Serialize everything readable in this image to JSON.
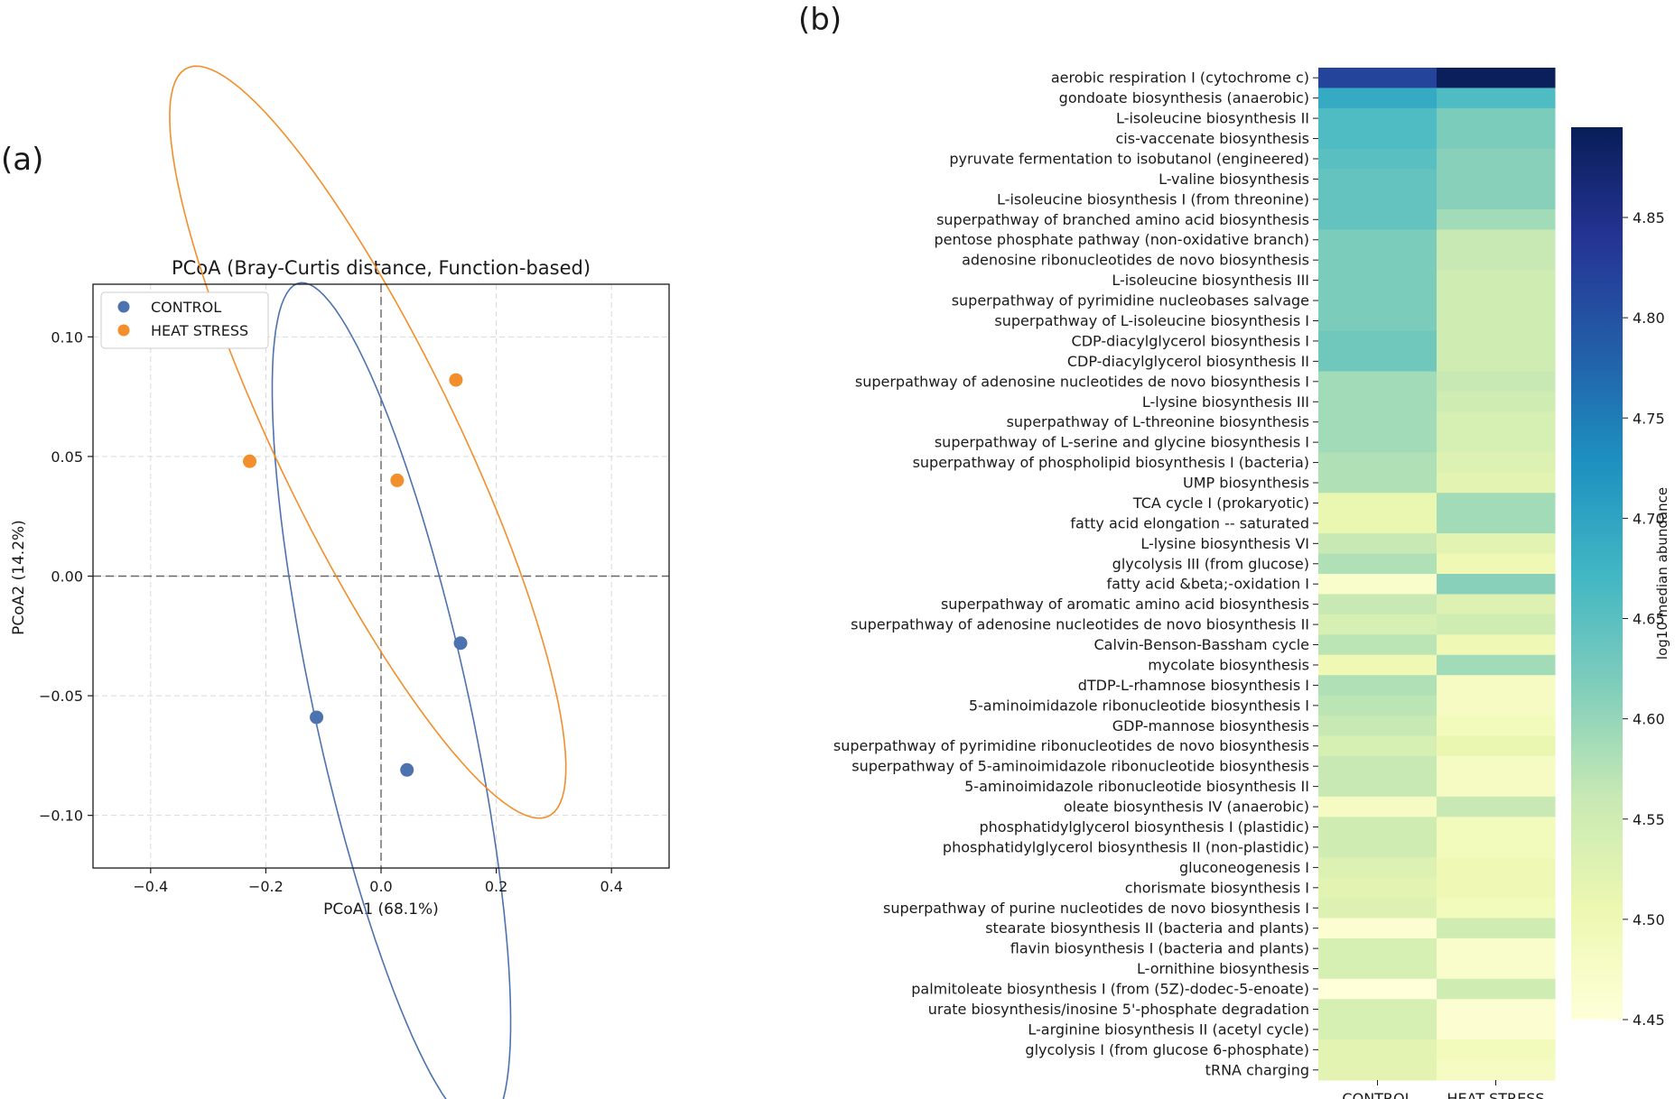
{
  "panels": {
    "a_label": "(a)",
    "b_label": "(b)"
  },
  "chart_data": [
    {
      "type": "scatter",
      "title": "PCoA (Bray-Curtis distance, Function-based)",
      "xlabel": "PCoA1 (68.1%)",
      "ylabel": "PCoA2 (14.2%)",
      "xlim": [
        -0.5,
        0.5
      ],
      "ylim": [
        -0.122,
        0.122
      ],
      "xticks": [
        -0.4,
        -0.2,
        0.0,
        0.2,
        0.4
      ],
      "xtick_labels": [
        "−0.4",
        "−0.2",
        "0.0",
        "0.2",
        "0.4"
      ],
      "yticks": [
        -0.1,
        -0.05,
        0.0,
        0.05,
        0.1
      ],
      "ytick_labels": [
        "−0.10",
        "−0.05",
        "0.00",
        "0.05",
        "0.10"
      ],
      "grid": true,
      "zero_lines": true,
      "legend_position": "top-left",
      "series": [
        {
          "name": "CONTROL",
          "color": "#4c72b0",
          "points": [
            [
              0.138,
              -0.028
            ],
            [
              -0.112,
              -0.059
            ],
            [
              0.045,
              -0.081
            ]
          ],
          "ellipse": {
            "center": [
              0.018,
              -0.054
            ],
            "rx": 0.255,
            "ry": 0.095,
            "angle_deg": -39
          }
        },
        {
          "name": "HEAT STRESS",
          "color": "#f28e2b",
          "points": [
            [
              -0.228,
              0.048
            ],
            [
              0.028,
              0.04
            ],
            [
              0.13,
              0.082
            ]
          ],
          "ellipse": {
            "center": [
              -0.023,
              0.056
            ],
            "rx": 0.371,
            "ry": 0.073,
            "angle_deg": -22.5
          }
        }
      ]
    },
    {
      "type": "heatmap",
      "columns": [
        "CONTROL",
        "HEAT STRESS"
      ],
      "rows": [
        "aerobic respiration I (cytochrome c)",
        "gondoate biosynthesis (anaerobic)",
        "L-isoleucine biosynthesis II",
        "cis-vaccenate biosynthesis",
        "pyruvate fermentation to isobutanol (engineered)",
        "L-valine biosynthesis",
        "L-isoleucine biosynthesis I (from threonine)",
        "superpathway of branched amino acid biosynthesis",
        "pentose phosphate pathway (non-oxidative branch)",
        "adenosine ribonucleotides de novo biosynthesis",
        "L-isoleucine biosynthesis III",
        "superpathway of pyrimidine nucleobases salvage",
        "superpathway of L-isoleucine biosynthesis I",
        "CDP-diacylglycerol biosynthesis I",
        "CDP-diacylglycerol biosynthesis II",
        "superpathway of adenosine nucleotides de novo biosynthesis I",
        "L-lysine biosynthesis III",
        "superpathway of L-threonine biosynthesis",
        "superpathway of L-serine and glycine biosynthesis I",
        "superpathway of phospholipid biosynthesis I (bacteria)",
        "UMP biosynthesis",
        "TCA cycle I (prokaryotic)",
        "fatty acid elongation -- saturated",
        "L-lysine biosynthesis VI",
        "glycolysis III (from glucose)",
        "fatty acid &beta;-oxidation I",
        "superpathway of aromatic amino acid biosynthesis",
        "superpathway of adenosine nucleotides de novo biosynthesis II",
        "Calvin-Benson-Bassham cycle",
        "mycolate biosynthesis",
        "dTDP-L-rhamnose biosynthesis I",
        "5-aminoimidazole ribonucleotide biosynthesis I",
        "GDP-mannose biosynthesis",
        "superpathway of pyrimidine ribonucleotides de novo biosynthesis",
        "superpathway of 5-aminoimidazole ribonucleotide biosynthesis",
        "5-aminoimidazole ribonucleotide biosynthesis II",
        "oleate biosynthesis IV (anaerobic)",
        "phosphatidylglycerol biosynthesis I (plastidic)",
        "phosphatidylglycerol biosynthesis II (non-plastidic)",
        "gluconeogenesis I",
        "chorismate biosynthesis I",
        "superpathway of purine nucleotides de novo biosynthesis I",
        "stearate biosynthesis II (bacteria and plants)",
        "flavin biosynthesis I (bacteria and plants)",
        "L-ornithine biosynthesis",
        "palmitoleate biosynthesis I (from (5Z)-dodec-5-enoate)",
        "urate biosynthesis/inosine 5'-phosphate degradation",
        "L-arginine biosynthesis II (acetyl cycle)",
        "glycolysis I (from glucose 6-phosphate)",
        "tRNA charging"
      ],
      "values": [
        [
          4.82,
          4.89
        ],
        [
          4.69,
          4.66
        ],
        [
          4.66,
          4.62
        ],
        [
          4.66,
          4.62
        ],
        [
          4.65,
          4.61
        ],
        [
          4.64,
          4.61
        ],
        [
          4.64,
          4.61
        ],
        [
          4.64,
          4.59
        ],
        [
          4.62,
          4.56
        ],
        [
          4.62,
          4.56
        ],
        [
          4.62,
          4.55
        ],
        [
          4.62,
          4.55
        ],
        [
          4.62,
          4.55
        ],
        [
          4.63,
          4.55
        ],
        [
          4.63,
          4.55
        ],
        [
          4.59,
          4.56
        ],
        [
          4.59,
          4.55
        ],
        [
          4.59,
          4.54
        ],
        [
          4.59,
          4.54
        ],
        [
          4.58,
          4.53
        ],
        [
          4.58,
          4.52
        ],
        [
          4.51,
          4.59
        ],
        [
          4.51,
          4.59
        ],
        [
          4.56,
          4.52
        ],
        [
          4.58,
          4.5
        ],
        [
          4.47,
          4.61
        ],
        [
          4.56,
          4.53
        ],
        [
          4.54,
          4.55
        ],
        [
          4.57,
          4.5
        ],
        [
          4.5,
          4.59
        ],
        [
          4.58,
          4.48
        ],
        [
          4.57,
          4.48
        ],
        [
          4.56,
          4.49
        ],
        [
          4.54,
          4.51
        ],
        [
          4.56,
          4.48
        ],
        [
          4.56,
          4.48
        ],
        [
          4.48,
          4.56
        ],
        [
          4.55,
          4.49
        ],
        [
          4.55,
          4.49
        ],
        [
          4.53,
          4.5
        ],
        [
          4.52,
          4.5
        ],
        [
          4.53,
          4.49
        ],
        [
          4.46,
          4.55
        ],
        [
          4.54,
          4.47
        ],
        [
          4.54,
          4.47
        ],
        [
          4.45,
          4.55
        ],
        [
          4.54,
          4.46
        ],
        [
          4.54,
          4.46
        ],
        [
          4.52,
          4.49
        ],
        [
          4.52,
          4.48
        ]
      ],
      "colorbar": {
        "label": "log10 median abundance",
        "range": [
          4.45,
          4.895
        ],
        "ticks": [
          4.45,
          4.5,
          4.55,
          4.6,
          4.65,
          4.7,
          4.75,
          4.8,
          4.85
        ],
        "tick_labels": [
          "4.45",
          "4.50",
          "4.55",
          "4.60",
          "4.65",
          "4.70",
          "4.75",
          "4.80",
          "4.85"
        ],
        "colormap": "YlGnBu"
      }
    }
  ]
}
